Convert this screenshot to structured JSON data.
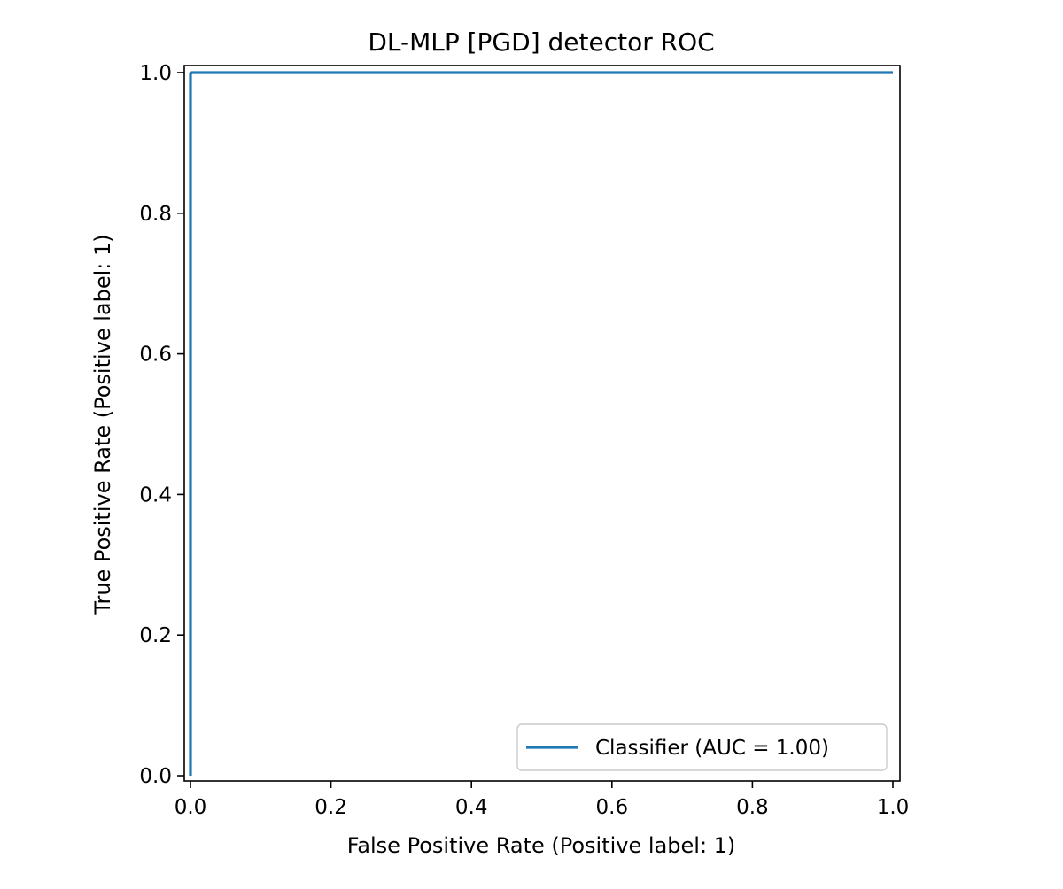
{
  "chart_data": {
    "type": "line",
    "title": "DL-MLP [PGD] detector ROC",
    "xlabel": "False Positive Rate (Positive label: 1)",
    "ylabel": "True Positive Rate (Positive label: 1)",
    "xlim": [
      0.0,
      1.0
    ],
    "ylim": [
      0.0,
      1.0
    ],
    "x_ticks": [
      0.0,
      0.2,
      0.4,
      0.6,
      0.8,
      1.0
    ],
    "x_tick_labels": [
      "0.0",
      "0.2",
      "0.4",
      "0.6",
      "0.8",
      "1.0"
    ],
    "y_ticks": [
      0.0,
      0.2,
      0.4,
      0.6,
      0.8,
      1.0
    ],
    "y_tick_labels": [
      "0.0",
      "0.2",
      "0.4",
      "0.6",
      "0.8",
      "1.0"
    ],
    "grid": false,
    "legend_position": "lower-right",
    "series": [
      {
        "name": "Classifier (AUC = 1.00)",
        "color": "#1f77b4",
        "x": [
          0.0,
          0.0,
          0.002,
          1.0
        ],
        "y": [
          0.0,
          0.998,
          1.0,
          1.0
        ]
      }
    ]
  }
}
